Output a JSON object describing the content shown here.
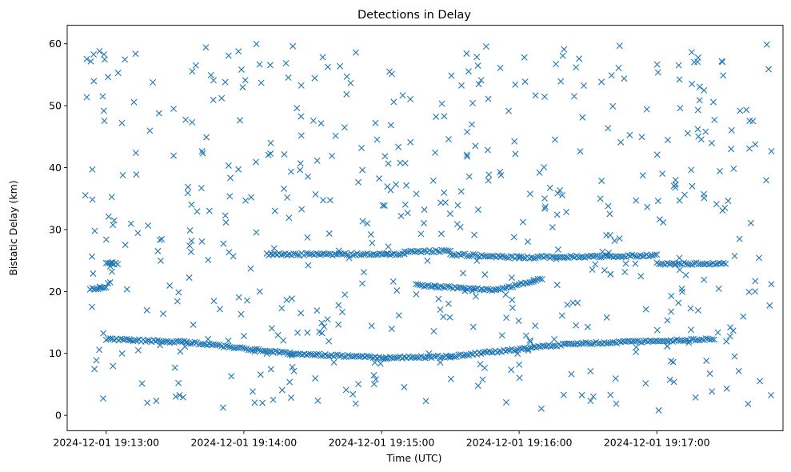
{
  "chart_data": {
    "type": "scatter",
    "title": "Detections in Delay",
    "xlabel": "Time (UTC)",
    "ylabel": "Bistatic Delay (km)",
    "marker": "x",
    "marker_color": "#1f77b4",
    "grid": false,
    "legend": "none",
    "xlim": [
      "2024-12-01 19:12:43",
      "2024-12-01 19:17:55"
    ],
    "ylim": [
      -2.5,
      63
    ],
    "xticks": [
      "2024-12-01 19:13:00",
      "2024-12-01 19:14:00",
      "2024-12-01 19:15:00",
      "2024-12-01 19:16:00",
      "2024-12-01 19:17:00"
    ],
    "yticks": [
      0,
      10,
      20,
      30,
      40,
      50,
      60
    ],
    "tracks": [
      {
        "x_start": "2024-12-01 19:13:00",
        "x_end": "2024-12-01 19:13:35",
        "y_start": 12.3,
        "y_end": 11.8
      },
      {
        "x_start": "2024-12-01 19:13:35",
        "x_end": "2024-12-01 19:14:20",
        "y_start": 11.8,
        "y_end": 10.0
      },
      {
        "x_start": "2024-12-01 19:14:20",
        "x_end": "2024-12-01 19:15:00",
        "y_start": 10.0,
        "y_end": 9.3
      },
      {
        "x_start": "2024-12-01 19:15:00",
        "x_end": "2024-12-01 19:15:30",
        "y_start": 9.3,
        "y_end": 9.5
      },
      {
        "x_start": "2024-12-01 19:15:30",
        "x_end": "2024-12-01 19:16:20",
        "y_start": 9.5,
        "y_end": 11.5
      },
      {
        "x_start": "2024-12-01 19:16:20",
        "x_end": "2024-12-01 19:17:25",
        "y_start": 11.5,
        "y_end": 12.3
      },
      {
        "x_start": "2024-12-01 19:14:10",
        "x_end": "2024-12-01 19:15:10",
        "y_start": 26.0,
        "y_end": 26.0
      },
      {
        "x_start": "2024-12-01 19:15:10",
        "x_end": "2024-12-01 19:15:30",
        "y_start": 26.5,
        "y_end": 26.5
      },
      {
        "x_start": "2024-12-01 19:15:30",
        "x_end": "2024-12-01 19:16:00",
        "y_start": 26.0,
        "y_end": 25.5
      },
      {
        "x_start": "2024-12-01 19:16:00",
        "x_end": "2024-12-01 19:17:00",
        "y_start": 25.5,
        "y_end": 25.8
      },
      {
        "x_start": "2024-12-01 19:17:00",
        "x_end": "2024-12-01 19:17:30",
        "y_start": 24.5,
        "y_end": 24.5
      },
      {
        "x_start": "2024-12-01 19:15:15",
        "x_end": "2024-12-01 19:15:50",
        "y_start": 21.0,
        "y_end": 20.2
      },
      {
        "x_start": "2024-12-01 19:15:50",
        "x_end": "2024-12-01 19:16:10",
        "y_start": 20.2,
        "y_end": 22.0
      },
      {
        "x_start": "2024-12-01 19:12:53",
        "x_end": "2024-12-01 19:13:00",
        "y_start": 20.5,
        "y_end": 20.5
      },
      {
        "x_start": "2024-12-01 19:13:00",
        "x_end": "2024-12-01 19:13:05",
        "y_start": 24.5,
        "y_end": 24.5
      }
    ]
  }
}
